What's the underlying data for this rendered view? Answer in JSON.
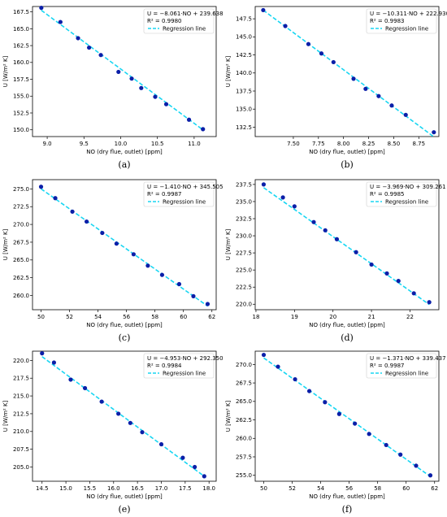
{
  "figure": {
    "panel_labels": [
      "(a)",
      "(b)",
      "(c)",
      "(d)",
      "(e)",
      "(f)"
    ]
  },
  "colors": {
    "points": "#0b1fa8",
    "regression": "#18d6f2",
    "axes": "#000000",
    "legend_border": "#cccccc"
  },
  "chart_data": [
    {
      "type": "scatter",
      "panel": "(a)",
      "xlabel": "NO (dry flue, outlet) [ppm]",
      "ylabel": "U [W/m² K]",
      "xlim": [
        8.8,
        11.3
      ],
      "ylim": [
        149.0,
        168.3
      ],
      "xticks": [
        9.0,
        9.5,
        10.0,
        10.5,
        11.0
      ],
      "xtick_labels": [
        "9.0",
        "9.5",
        "10.0",
        "10.5",
        "11.0"
      ],
      "yticks": [
        150.0,
        152.5,
        155.0,
        157.5,
        160.0,
        162.5,
        165.0,
        167.5
      ],
      "ytick_labels": [
        "150.0",
        "152.5",
        "155.0",
        "157.5",
        "160.0",
        "162.5",
        "165.0",
        "167.5"
      ],
      "equation": "U = −8.061·NO + 239.638",
      "r2": "R² = 0.9980",
      "legend": [
        "Regression line"
      ],
      "x": [
        8.92,
        9.18,
        9.42,
        9.57,
        9.73,
        9.97,
        10.15,
        10.28,
        10.47,
        10.62,
        10.93,
        11.12
      ],
      "y": [
        168.1,
        166.0,
        163.6,
        162.2,
        161.1,
        158.6,
        157.6,
        156.2,
        154.9,
        153.8,
        151.5,
        150.1
      ],
      "fit": {
        "slope": -8.061,
        "intercept": 239.638
      }
    },
    {
      "type": "scatter",
      "panel": "(b)",
      "xlabel": "NO (dry flue, outlet) [ppm]",
      "ylabel": "U [W/m² K]",
      "xlim": [
        7.12,
        8.95
      ],
      "ylim": [
        131.2,
        149.2
      ],
      "xticks": [
        7.5,
        7.75,
        8.0,
        8.25,
        8.5,
        8.75
      ],
      "xtick_labels": [
        "7.50",
        "7.75",
        "8.00",
        "8.25",
        "8.50",
        "8.75"
      ],
      "yticks": [
        132.5,
        135.0,
        137.5,
        140.0,
        142.5,
        145.0,
        147.5
      ],
      "ytick_labels": [
        "132.5",
        "135.0",
        "137.5",
        "140.0",
        "142.5",
        "145.0",
        "147.5"
      ],
      "equation": "U = −10.311·NO + 222.930",
      "r2": "R² = 0.9983",
      "legend": [
        "Regression line"
      ],
      "x": [
        7.2,
        7.42,
        7.65,
        7.78,
        7.9,
        8.1,
        8.22,
        8.35,
        8.48,
        8.62,
        8.9
      ],
      "y": [
        148.7,
        146.5,
        144.0,
        142.7,
        141.5,
        139.2,
        137.8,
        136.8,
        135.5,
        134.2,
        131.8
      ],
      "fit": {
        "slope": -10.311,
        "intercept": 222.93
      }
    },
    {
      "type": "scatter",
      "panel": "(c)",
      "xlabel": "NO (dry flue, outlet) [ppm]",
      "ylabel": "U [W/m² K]",
      "xlim": [
        49.4,
        62.3
      ],
      "ylim": [
        258.0,
        276.3
      ],
      "xticks": [
        50,
        52,
        54,
        56,
        58,
        60,
        62
      ],
      "xtick_labels": [
        "50",
        "52",
        "54",
        "56",
        "58",
        "60",
        "62"
      ],
      "yticks": [
        260.0,
        262.5,
        265.0,
        267.5,
        270.0,
        272.5,
        275.0
      ],
      "ytick_labels": [
        "260.0",
        "262.5",
        "265.0",
        "267.5",
        "270.0",
        "272.5",
        "275.0"
      ],
      "equation": "U = −1.410·NO + 345.505",
      "r2": "R² = 0.9987",
      "legend": [
        "Regression line"
      ],
      "x": [
        50.0,
        51.0,
        52.2,
        53.2,
        54.3,
        55.3,
        56.5,
        57.5,
        58.5,
        59.7,
        60.7,
        61.7
      ],
      "y": [
        275.3,
        273.7,
        271.8,
        270.4,
        268.8,
        267.3,
        265.8,
        264.2,
        262.9,
        261.6,
        259.9,
        258.8
      ],
      "fit": {
        "slope": -1.41,
        "intercept": 345.505
      }
    },
    {
      "type": "scatter",
      "panel": "(d)",
      "xlabel": "NO (dry flue, outlet) [ppm]",
      "ylabel": "U [W/m² K]",
      "xlim": [
        17.98,
        22.75
      ],
      "ylim": [
        219.2,
        238.2
      ],
      "xticks": [
        18,
        19,
        20,
        21,
        22
      ],
      "xtick_labels": [
        "18",
        "19",
        "20",
        "21",
        "22"
      ],
      "yticks": [
        220.0,
        222.5,
        225.0,
        227.5,
        230.0,
        232.5,
        235.0,
        237.5
      ],
      "ytick_labels": [
        "220.0",
        "222.5",
        "225.0",
        "227.5",
        "230.0",
        "232.5",
        "235.0",
        "237.5"
      ],
      "equation": "U = −3.969·NO + 309.261",
      "r2": "R² = 0.9985",
      "legend": [
        "Regression line"
      ],
      "x": [
        18.2,
        18.7,
        19.0,
        19.5,
        19.8,
        20.1,
        20.6,
        21.0,
        21.4,
        21.7,
        22.1,
        22.5
      ],
      "y": [
        237.5,
        235.6,
        234.3,
        232.0,
        230.8,
        229.5,
        227.6,
        225.8,
        224.5,
        223.4,
        221.6,
        220.3
      ],
      "fit": {
        "slope": -3.969,
        "intercept": 309.261
      }
    },
    {
      "type": "scatter",
      "panel": "(e)",
      "xlabel": "NO (dry flue, outlet) [ppm]",
      "ylabel": "U [W/m² K]",
      "xlim": [
        14.3,
        18.15
      ],
      "ylim": [
        203.0,
        221.3
      ],
      "xticks": [
        14.5,
        15.0,
        15.5,
        16.0,
        16.5,
        17.0,
        17.5,
        18.0
      ],
      "xtick_labels": [
        "14.5",
        "15.0",
        "15.5",
        "16.0",
        "16.5",
        "17.0",
        "17.5",
        "18.0"
      ],
      "yticks": [
        205.0,
        207.5,
        210.0,
        212.5,
        215.0,
        217.5,
        220.0
      ],
      "ytick_labels": [
        "205.0",
        "207.5",
        "210.0",
        "212.5",
        "215.0",
        "217.5",
        "220.0"
      ],
      "equation": "U = −4.953·NO + 292.350",
      "r2": "R² = 0.9984",
      "legend": [
        "Regression line"
      ],
      "x": [
        14.5,
        14.75,
        15.1,
        15.4,
        15.75,
        16.1,
        16.35,
        16.6,
        17.0,
        17.45,
        17.7,
        17.9
      ],
      "y": [
        221.0,
        219.7,
        217.3,
        216.1,
        214.2,
        212.5,
        211.2,
        209.9,
        208.2,
        206.3,
        205.0,
        203.7
      ],
      "fit": {
        "slope": -4.953,
        "intercept": 292.35
      }
    },
    {
      "type": "scatter",
      "panel": "(f)",
      "xlabel": "NO (dry flue, outlet) [ppm]",
      "ylabel": "U [W/m² K]",
      "xlim": [
        49.4,
        62.3
      ],
      "ylim": [
        254.2,
        271.8
      ],
      "xticks": [
        50,
        52,
        54,
        56,
        58,
        60,
        62
      ],
      "xtick_labels": [
        "50",
        "52",
        "54",
        "56",
        "58",
        "60",
        "62"
      ],
      "yticks": [
        255.0,
        257.5,
        260.0,
        262.5,
        265.0,
        267.5,
        270.0
      ],
      "ytick_labels": [
        "255.0",
        "257.5",
        "260.0",
        "262.5",
        "265.0",
        "267.5",
        "270.0"
      ],
      "equation": "U = −1.371·NO + 339.437",
      "r2": "R² = 0.9987",
      "legend": [
        "Regression line"
      ],
      "x": [
        50.0,
        51.0,
        52.2,
        53.2,
        54.3,
        55.3,
        56.4,
        57.4,
        58.6,
        59.6,
        60.7,
        61.7
      ],
      "y": [
        271.3,
        269.7,
        268.0,
        266.4,
        264.9,
        263.3,
        262.0,
        260.6,
        259.1,
        257.8,
        256.3,
        255.0
      ],
      "fit": {
        "slope": -1.371,
        "intercept": 339.437
      }
    }
  ]
}
